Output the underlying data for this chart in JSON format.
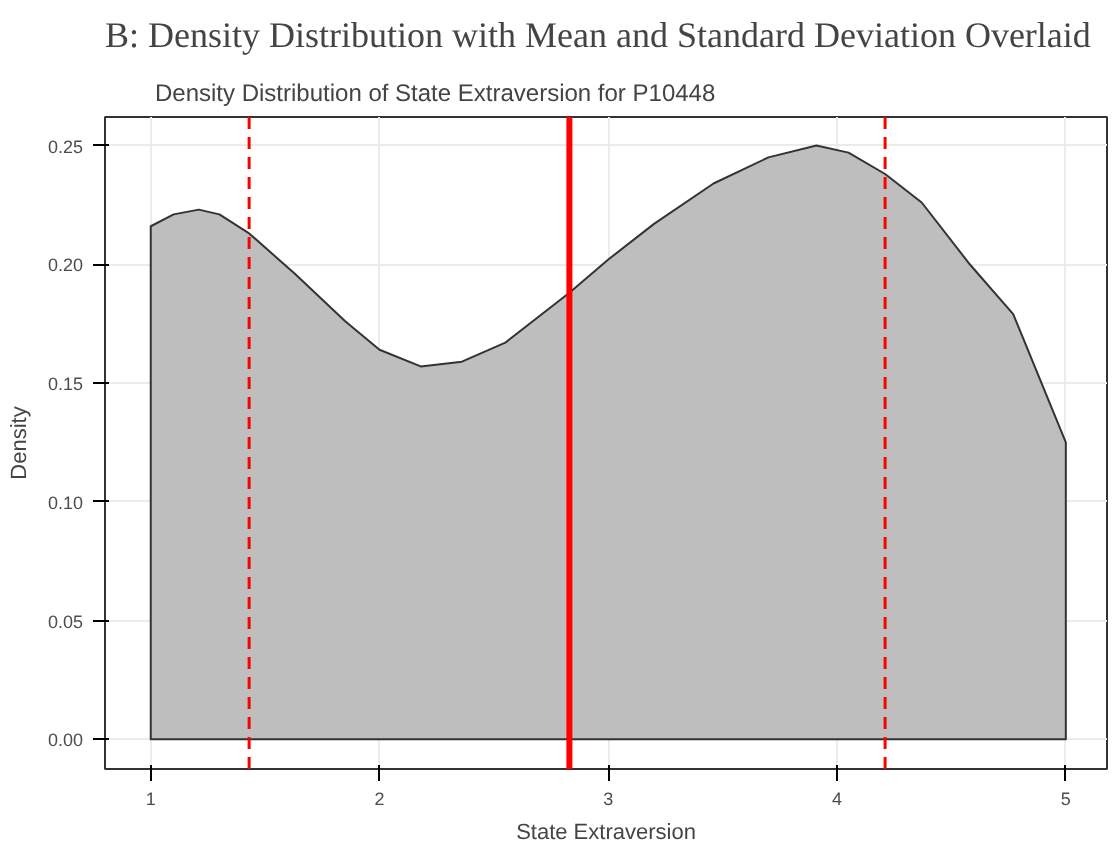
{
  "chart_data": {
    "type": "area",
    "title": "B: Density Distribution with Mean and Standard Deviation Overlaid",
    "subtitle": "Density Distribution of State Extraversion for P10448",
    "xlabel": "State Extraversion",
    "ylabel": "Density",
    "x": [
      1,
      1.1,
      1.21,
      1.3,
      1.43,
      1.63,
      1.85,
      2.0,
      2.18,
      2.36,
      2.55,
      2.83,
      3.0,
      3.2,
      3.46,
      3.7,
      3.91,
      4.05,
      4.21,
      4.37,
      4.58,
      4.77,
      5
    ],
    "series": [
      {
        "color": "#bebebe",
        "values": [
          0.216,
          0.221,
          0.223,
          0.221,
          0.213,
          0.196,
          0.176,
          0.164,
          0.157,
          0.159,
          0.167,
          0.188,
          0.202,
          0.217,
          0.234,
          0.245,
          0.25,
          0.247,
          0.238,
          0.226,
          0.2,
          0.179,
          0.125
        ]
      }
    ],
    "xlim": [
      0.8,
      5.18
    ],
    "ylim": [
      -0.0125,
      0.262
    ],
    "xticks": [
      1,
      2,
      3,
      4,
      5
    ],
    "yticks": [
      {
        "value": 0,
        "label": "0.00"
      },
      {
        "value": 0.05,
        "label": "0.05"
      },
      {
        "value": 0.1,
        "label": "0.10"
      },
      {
        "value": 0.15,
        "label": "0.15"
      },
      {
        "value": 0.2,
        "label": "0.20"
      },
      {
        "value": 0.25,
        "label": "0.25"
      }
    ],
    "ref_lines": [
      {
        "axis": "x",
        "value": 2.83,
        "color": "#ff0000",
        "line_style": "solid"
      },
      {
        "axis": "x",
        "value": 1.43,
        "color": "#ff0000",
        "line_style": "dashed"
      },
      {
        "axis": "x",
        "value": 4.21,
        "color": "#ff0000",
        "line_style": "dashed"
      }
    ],
    "grid": true
  }
}
